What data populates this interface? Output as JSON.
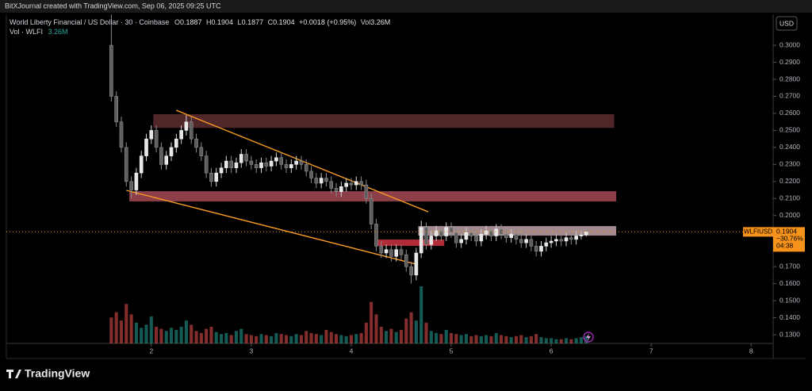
{
  "chart_data": {
    "type": "candlestick",
    "header": "BitXJournal created with TradingView.com, Sep 06, 2025 09:25 UTC",
    "title": "World Liberty Financial / US Dollar · 30 · Coinbase",
    "ohlc_legend": [
      {
        "key": "O",
        "value": "0.1887"
      },
      {
        "key": "H",
        "value": "0.1904"
      },
      {
        "key": "L",
        "value": "0.1877"
      },
      {
        "key": "C",
        "value": "0.1904"
      }
    ],
    "change_legend": "+0.0018 (+0.95%)",
    "vol_key": "Vol",
    "vol_value": "3.26M",
    "volume_label": "Vol · WLFI",
    "volume_value_label": "3.26M",
    "currency": "USD",
    "brand": "TradingView",
    "x": [
      1.6,
      1.65,
      1.7,
      1.75,
      1.8,
      1.85,
      1.9,
      1.95,
      2.0,
      2.05,
      2.1,
      2.15,
      2.2,
      2.25,
      2.3,
      2.35,
      2.4,
      2.45,
      2.5,
      2.55,
      2.6,
      2.65,
      2.7,
      2.75,
      2.8,
      2.85,
      2.9,
      2.95,
      3.0,
      3.05,
      3.1,
      3.15,
      3.2,
      3.25,
      3.3,
      3.35,
      3.4,
      3.45,
      3.5,
      3.55,
      3.6,
      3.65,
      3.7,
      3.75,
      3.8,
      3.85,
      3.9,
      3.95,
      4.0,
      4.05,
      4.1,
      4.15,
      4.2,
      4.25,
      4.3,
      4.35,
      4.4,
      4.45,
      4.5,
      4.55,
      4.6,
      4.65,
      4.7,
      4.75,
      4.8,
      4.85,
      4.9,
      4.95,
      5.0,
      5.05,
      5.1,
      5.15,
      5.2,
      5.25,
      5.3,
      5.35,
      5.4,
      5.45,
      5.5,
      5.55,
      5.6,
      5.65,
      5.7,
      5.75,
      5.8,
      5.85,
      5.9,
      5.95,
      6.0,
      6.05,
      6.1,
      6.15,
      6.2,
      6.25,
      6.3,
      6.35
    ],
    "open": [
      0.3,
      0.27,
      0.255,
      0.24,
      0.22,
      0.215,
      0.225,
      0.235,
      0.245,
      0.25,
      0.24,
      0.23,
      0.235,
      0.24,
      0.245,
      0.25,
      0.255,
      0.245,
      0.24,
      0.235,
      0.225,
      0.22,
      0.225,
      0.228,
      0.232,
      0.228,
      0.231,
      0.236,
      0.232,
      0.23,
      0.228,
      0.231,
      0.229,
      0.232,
      0.234,
      0.23,
      0.228,
      0.23,
      0.232,
      0.23,
      0.226,
      0.222,
      0.219,
      0.222,
      0.22,
      0.216,
      0.214,
      0.217,
      0.219,
      0.218,
      0.22,
      0.218,
      0.21,
      0.195,
      0.182,
      0.178,
      0.18,
      0.176,
      0.18,
      0.177,
      0.17,
      0.165,
      0.178,
      0.193,
      0.183,
      0.188,
      0.191,
      0.188,
      0.193,
      0.19,
      0.184,
      0.186,
      0.19,
      0.188,
      0.185,
      0.189,
      0.191,
      0.188,
      0.192,
      0.189,
      0.187,
      0.189,
      0.186,
      0.184,
      0.186,
      0.182,
      0.179,
      0.182,
      0.184,
      0.185,
      0.186,
      0.185,
      0.187,
      0.186,
      0.188,
      0.1887
    ],
    "high": [
      0.318,
      0.273,
      0.258,
      0.243,
      0.223,
      0.228,
      0.238,
      0.248,
      0.253,
      0.253,
      0.243,
      0.238,
      0.243,
      0.248,
      0.253,
      0.259,
      0.258,
      0.248,
      0.243,
      0.238,
      0.228,
      0.228,
      0.231,
      0.235,
      0.235,
      0.234,
      0.239,
      0.239,
      0.235,
      0.233,
      0.234,
      0.234,
      0.235,
      0.237,
      0.237,
      0.233,
      0.233,
      0.235,
      0.235,
      0.233,
      0.229,
      0.225,
      0.225,
      0.225,
      0.223,
      0.219,
      0.22,
      0.222,
      0.222,
      0.223,
      0.223,
      0.221,
      0.213,
      0.198,
      0.185,
      0.183,
      0.183,
      0.183,
      0.183,
      0.18,
      0.173,
      0.181,
      0.197,
      0.196,
      0.191,
      0.194,
      0.194,
      0.196,
      0.196,
      0.193,
      0.189,
      0.193,
      0.193,
      0.191,
      0.192,
      0.194,
      0.194,
      0.195,
      0.195,
      0.192,
      0.192,
      0.192,
      0.189,
      0.189,
      0.189,
      0.185,
      0.185,
      0.187,
      0.188,
      0.189,
      0.189,
      0.19,
      0.19,
      0.191,
      0.191,
      0.1904
    ],
    "low": [
      0.267,
      0.252,
      0.237,
      0.217,
      0.21,
      0.212,
      0.222,
      0.232,
      0.242,
      0.237,
      0.227,
      0.227,
      0.232,
      0.237,
      0.242,
      0.247,
      0.242,
      0.237,
      0.232,
      0.222,
      0.217,
      0.217,
      0.222,
      0.225,
      0.225,
      0.225,
      0.228,
      0.229,
      0.227,
      0.225,
      0.225,
      0.226,
      0.226,
      0.229,
      0.227,
      0.225,
      0.225,
      0.227,
      0.227,
      0.223,
      0.219,
      0.216,
      0.216,
      0.217,
      0.213,
      0.211,
      0.211,
      0.214,
      0.215,
      0.215,
      0.215,
      0.207,
      0.192,
      0.179,
      0.175,
      0.175,
      0.173,
      0.173,
      0.174,
      0.167,
      0.16,
      0.162,
      0.175,
      0.18,
      0.18,
      0.185,
      0.185,
      0.185,
      0.187,
      0.181,
      0.181,
      0.183,
      0.185,
      0.182,
      0.182,
      0.186,
      0.185,
      0.185,
      0.186,
      0.184,
      0.184,
      0.183,
      0.181,
      0.181,
      0.179,
      0.176,
      0.176,
      0.179,
      0.181,
      0.182,
      0.182,
      0.182,
      0.183,
      0.183,
      0.186,
      0.1877
    ],
    "close": [
      0.27,
      0.255,
      0.24,
      0.22,
      0.215,
      0.225,
      0.235,
      0.245,
      0.25,
      0.24,
      0.23,
      0.235,
      0.24,
      0.245,
      0.25,
      0.255,
      0.245,
      0.24,
      0.235,
      0.225,
      0.22,
      0.225,
      0.228,
      0.232,
      0.228,
      0.231,
      0.236,
      0.232,
      0.23,
      0.228,
      0.231,
      0.229,
      0.232,
      0.234,
      0.23,
      0.228,
      0.23,
      0.232,
      0.23,
      0.226,
      0.222,
      0.219,
      0.222,
      0.22,
      0.216,
      0.214,
      0.217,
      0.219,
      0.218,
      0.22,
      0.218,
      0.21,
      0.195,
      0.182,
      0.178,
      0.18,
      0.176,
      0.18,
      0.177,
      0.17,
      0.165,
      0.178,
      0.193,
      0.183,
      0.188,
      0.191,
      0.188,
      0.193,
      0.19,
      0.184,
      0.186,
      0.19,
      0.188,
      0.185,
      0.189,
      0.191,
      0.188,
      0.192,
      0.189,
      0.187,
      0.189,
      0.186,
      0.184,
      0.186,
      0.182,
      0.179,
      0.182,
      0.184,
      0.185,
      0.186,
      0.185,
      0.187,
      0.186,
      0.188,
      0.1886,
      0.1904
    ],
    "volume": [
      2.5,
      3.0,
      2.2,
      3.8,
      2.8,
      2.0,
      1.5,
      1.8,
      2.6,
      1.6,
      1.4,
      1.2,
      1.5,
      1.3,
      1.6,
      2.2,
      1.8,
      1.2,
      1.0,
      1.4,
      1.6,
      1.1,
      0.9,
      1.0,
      0.8,
      1.2,
      1.4,
      0.9,
      0.8,
      0.7,
      0.9,
      0.8,
      0.7,
      1.0,
      0.9,
      0.8,
      0.7,
      0.9,
      0.8,
      1.2,
      1.0,
      0.9,
      0.8,
      1.3,
      1.1,
      0.9,
      0.8,
      0.7,
      0.8,
      0.9,
      1.0,
      2.0,
      4.0,
      2.8,
      1.6,
      1.2,
      1.4,
      1.1,
      1.3,
      2.4,
      3.0,
      2.2,
      5.5,
      2.0,
      1.2,
      1.0,
      0.9,
      1.3,
      1.0,
      0.9,
      0.8,
      0.9,
      0.7,
      0.8,
      0.7,
      0.8,
      0.7,
      1.0,
      0.8,
      0.7,
      0.6,
      0.7,
      0.8,
      0.6,
      0.7,
      0.9,
      0.6,
      0.5,
      0.5,
      0.4,
      0.4,
      0.5,
      0.4,
      0.5,
      0.6,
      0.7
    ],
    "up_color": "#e6e6e6",
    "down_color": "#5e5e5e",
    "volume_up_color": "#26a69a",
    "volume_down_color": "#ef5350",
    "xlim": [
      0.55,
      8.22
    ],
    "ylim": [
      0.1249,
      0.3182
    ],
    "xticks": [
      2,
      3,
      4,
      5,
      6,
      7,
      8
    ],
    "yticks": [
      {
        "value": 0.3,
        "label": "0.3000"
      },
      {
        "value": 0.29,
        "label": "0.2900"
      },
      {
        "value": 0.28,
        "label": "0.2800"
      },
      {
        "value": 0.27,
        "label": "0.2700"
      },
      {
        "value": 0.26,
        "label": "0.2600"
      },
      {
        "value": 0.25,
        "label": "0.2500"
      },
      {
        "value": 0.24,
        "label": "0.2400"
      },
      {
        "value": 0.23,
        "label": "0.2300"
      },
      {
        "value": 0.22,
        "label": "0.2200"
      },
      {
        "value": 0.21,
        "label": "0.2100"
      },
      {
        "value": 0.2,
        "label": "0.2000"
      },
      {
        "value": 0.19,
        "label": "0.1900"
      },
      {
        "value": 0.18,
        "label": "0.1800"
      },
      {
        "value": 0.17,
        "label": "0.1700"
      },
      {
        "value": 0.16,
        "label": "0.1600"
      },
      {
        "value": 0.15,
        "label": "0.1500"
      },
      {
        "value": 0.14,
        "label": "0.1400"
      },
      {
        "value": 0.13,
        "label": "0.1300"
      }
    ],
    "grid": false,
    "zones": [
      {
        "x": [
          2.02,
          6.63
        ],
        "y": [
          0.2515,
          0.2595
        ],
        "color": "#5a2a2c"
      },
      {
        "x": [
          1.78,
          6.65
        ],
        "y": [
          0.2083,
          0.2143
        ],
        "color": "#9b4650"
      },
      {
        "x": [
          4.67,
          6.65
        ],
        "y": [
          0.1882,
          0.1938
        ],
        "color": "#b29a9e"
      },
      {
        "x": [
          4.24,
          4.93
        ],
        "y": [
          0.1822,
          0.1859
        ],
        "color": "#c3323e"
      }
    ],
    "trendlines": [
      {
        "x": [
          2.25,
          4.77
        ],
        "y": [
          0.2618,
          0.2022
        ],
        "color": "#f59a23"
      },
      {
        "x": [
          1.75,
          4.65
        ],
        "y": [
          0.2148,
          0.1714
        ],
        "color": "#f59a23"
      }
    ],
    "last_price": {
      "value": 0.1904,
      "symbol": "WLFIUSD",
      "change": "−30.76%",
      "countdown": "04:38",
      "color": "#f7931a"
    }
  }
}
